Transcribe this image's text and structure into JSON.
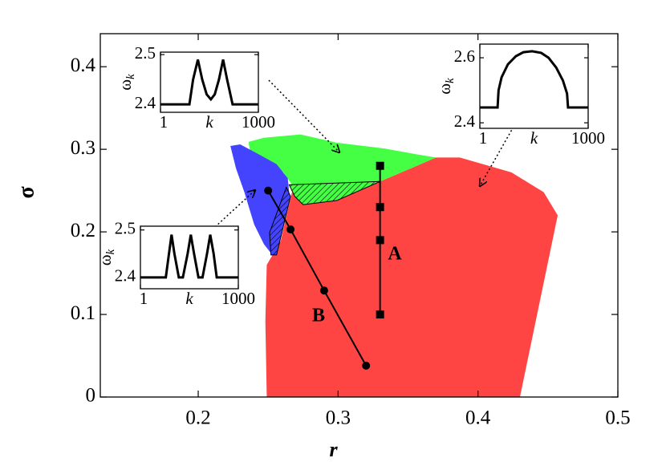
{
  "chart_data": [
    {
      "type": "line",
      "xlabel": "r",
      "ylabel": "σ",
      "xlim": [
        0.13,
        0.5
      ],
      "ylim": [
        0,
        0.44
      ],
      "xticks": [
        0.2,
        0.3,
        0.4,
        0.5
      ],
      "yticks": [
        0,
        0.1,
        0.2,
        0.3,
        0.4
      ],
      "regions": [
        {
          "color": "#ff4444",
          "hatch": false,
          "x": [
            0.249,
            0.248,
            0.249,
            0.259,
            0.264,
            0.267,
            0.273,
            0.299,
            0.33,
            0.37,
            0.387,
            0.424,
            0.447,
            0.457,
            0.43
          ],
          "y": [
            0,
            0.092,
            0.16,
            0.189,
            0.226,
            0.248,
            0.236,
            0.238,
            0.261,
            0.29,
            0.29,
            0.272,
            0.248,
            0.22,
            0
          ]
        },
        {
          "color": "#44ff44",
          "hatch": false,
          "x": [
            0.236,
            0.247,
            0.273,
            0.299,
            0.333,
            0.356,
            0.37,
            0.33,
            0.267,
            0.261,
            0.25,
            0.237
          ],
          "y": [
            0.309,
            0.314,
            0.318,
            0.308,
            0.301,
            0.294,
            0.29,
            0.261,
            0.257,
            0.272,
            0.286,
            0.298
          ]
        },
        {
          "color": "#4444ff",
          "hatch": false,
          "x": [
            0.223,
            0.23,
            0.241,
            0.256,
            0.264,
            0.265,
            0.259,
            0.256,
            0.253,
            0.247,
            0.24,
            0.233,
            0.227
          ],
          "y": [
            0.304,
            0.306,
            0.296,
            0.282,
            0.265,
            0.248,
            0.218,
            0.189,
            0.172,
            0.185,
            0.209,
            0.248,
            0.277
          ]
        },
        {
          "color": "#44ff44",
          "hatch": true,
          "x": [
            0.265,
            0.33,
            0.299,
            0.275,
            0.269
          ],
          "y": [
            0.257,
            0.261,
            0.238,
            0.233,
            0.243
          ]
        },
        {
          "color": "#4444ff",
          "hatch": true,
          "x": [
            0.263,
            0.266,
            0.256,
            0.252,
            0.251
          ],
          "y": [
            0.254,
            0.243,
            0.172,
            0.172,
            0.199
          ]
        }
      ],
      "series": [
        {
          "name": "A",
          "color": "#000000",
          "marker": "square",
          "x": [
            0.33,
            0.33,
            0.33,
            0.33
          ],
          "values": [
            0.28,
            0.23,
            0.19,
            0.1
          ]
        },
        {
          "name": "B",
          "color": "#000000",
          "marker": "circle",
          "x": [
            0.25,
            0.266,
            0.29,
            0.32
          ],
          "values": [
            0.25,
            0.203,
            0.129,
            0.038
          ]
        }
      ]
    },
    {
      "type": "line",
      "xscale": "log",
      "xlabel": "k",
      "ylabel": [
        "ω",
        "k"
      ],
      "xlim": [
        1,
        1000
      ],
      "ylim": [
        2.384,
        2.505
      ],
      "xticks": [
        1,
        1000
      ],
      "yticks": [
        2.4,
        2.5
      ],
      "series": [
        {
          "color": "#000000",
          "x": [
            1,
            7.7,
            10,
            14,
            19,
            26,
            35,
            46,
            62,
            83,
            110,
            162,
            1000
          ],
          "values": [
            2.4,
            2.4,
            2.45,
            2.49,
            2.45,
            2.42,
            2.41,
            2.42,
            2.45,
            2.49,
            2.45,
            2.4,
            2.4
          ]
        }
      ]
    },
    {
      "type": "line",
      "xscale": "log",
      "xlabel": "k",
      "ylabel": [
        "ω",
        "k"
      ],
      "xlim": [
        1,
        1000
      ],
      "ylim": [
        2.376,
        2.508
      ],
      "xticks": [
        1,
        1000
      ],
      "yticks": [
        2.4,
        2.5
      ],
      "series": [
        {
          "color": "#000000",
          "x": [
            1,
            6,
            7.5,
            9,
            11,
            15,
            20,
            28,
            35,
            44,
            60,
            80,
            110,
            138,
            175,
            218,
            1000
          ],
          "values": [
            2.4,
            2.4,
            2.45,
            2.49,
            2.45,
            2.4,
            2.4,
            2.45,
            2.49,
            2.45,
            2.4,
            2.4,
            2.45,
            2.49,
            2.45,
            2.4,
            2.4
          ]
        }
      ]
    },
    {
      "type": "line",
      "xscale": "log",
      "xlabel": "k",
      "ylabel": [
        "ω",
        "k"
      ],
      "xlim": [
        1,
        1000
      ],
      "ylim": [
        2.383,
        2.642
      ],
      "xticks": [
        1,
        1000
      ],
      "yticks": [
        2.4,
        2.6
      ],
      "series": [
        {
          "color": "#000000",
          "x": [
            1,
            3.1,
            3.3,
            4,
            6,
            10,
            16,
            28,
            50,
            80,
            130,
            200,
            260,
            277,
            1000
          ],
          "values": [
            2.447,
            2.447,
            2.5,
            2.54,
            2.58,
            2.605,
            2.617,
            2.62,
            2.615,
            2.6,
            2.57,
            2.53,
            2.49,
            2.447,
            2.447
          ]
        }
      ]
    }
  ]
}
